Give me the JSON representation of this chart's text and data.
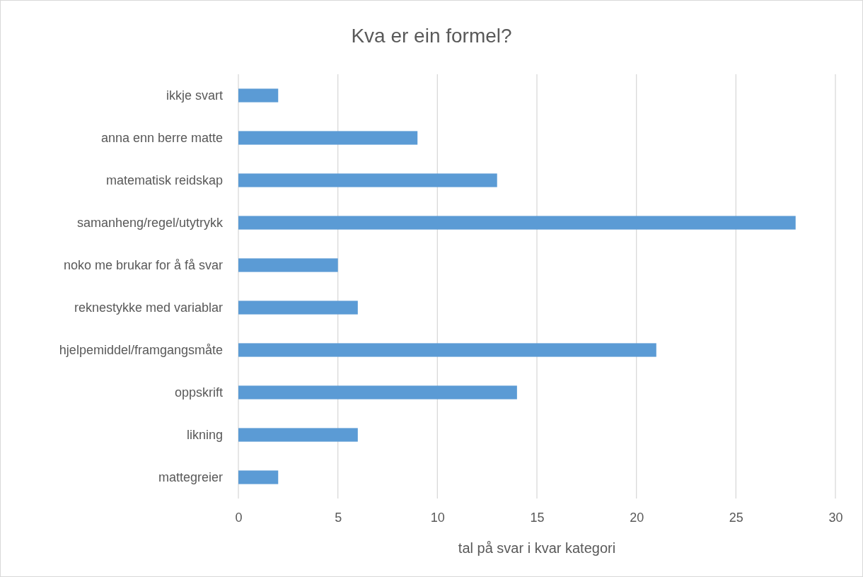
{
  "chart_data": {
    "type": "bar",
    "orientation": "horizontal",
    "title": "Kva er ein formel?",
    "xlabel": "tal på svar i kvar kategori",
    "categories": [
      "ikkje svart",
      "anna enn berre matte",
      "matematisk reidskap",
      "samanheng/regel/utytrykk",
      "noko me brukar for å få svar",
      "reknestykke med variablar",
      "hjelpemiddel/framgangsmåte",
      "oppskrift",
      "likning",
      "mattegreier"
    ],
    "values": [
      2,
      9,
      13,
      28,
      5,
      6,
      21,
      14,
      6,
      2
    ],
    "color": "#5b9bd5",
    "xlim": [
      0,
      30
    ],
    "xticks": [
      0,
      5,
      10,
      15,
      20,
      25,
      30
    ],
    "grid": "x"
  }
}
